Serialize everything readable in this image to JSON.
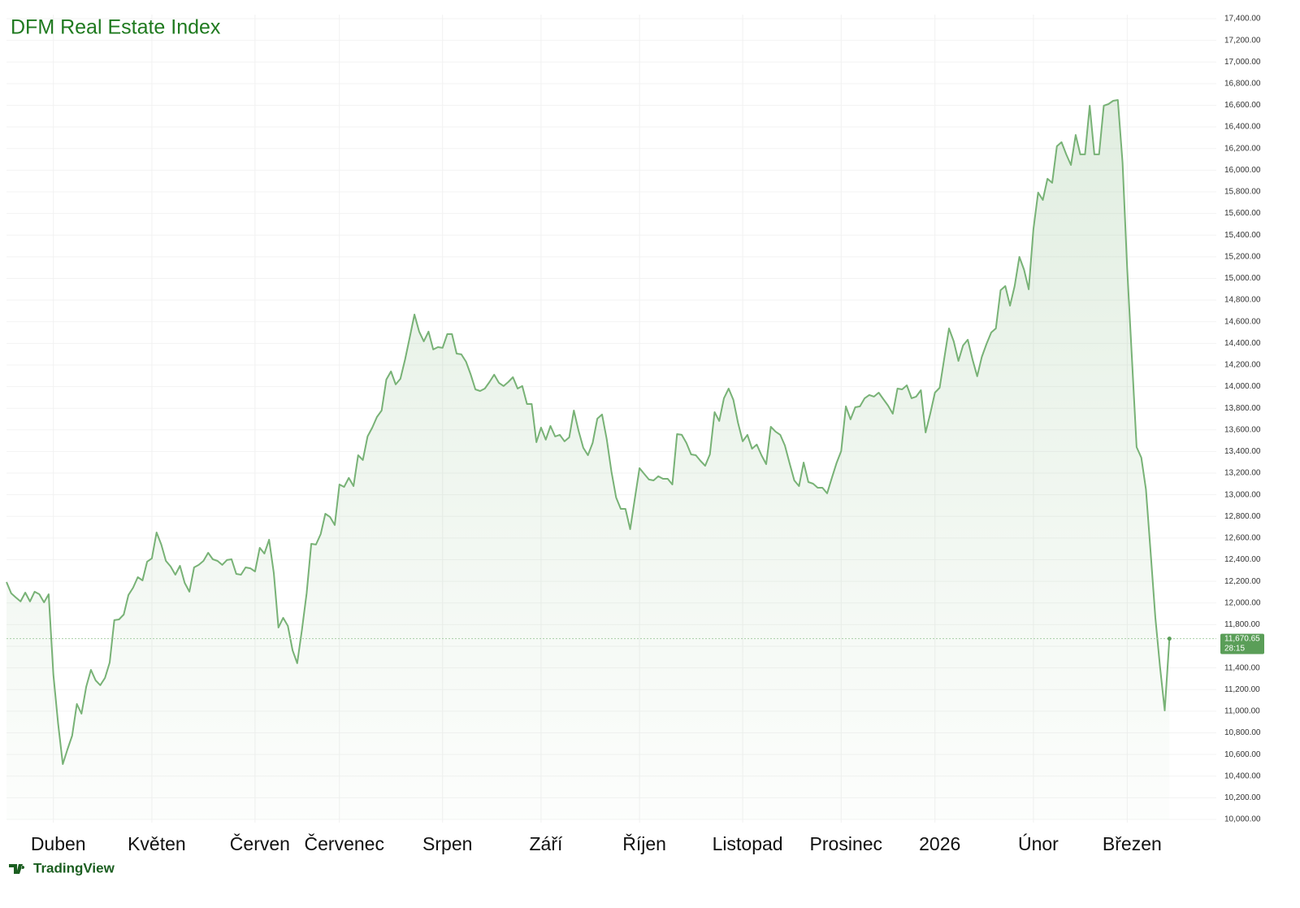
{
  "chart_data": {
    "type": "area",
    "title": "DFM Real Estate Index",
    "brand": "TradingView",
    "color": "#78b276",
    "values": [
      12194,
      12089,
      12051,
      12014,
      12096,
      12014,
      12104,
      12081,
      12006,
      12081,
      11337,
      10887,
      10511,
      10646,
      10774,
      11067,
      10977,
      11225,
      11382,
      11285,
      11240,
      11307,
      11450,
      11841,
      11848,
      11893,
      12074,
      12141,
      12239,
      12209,
      12382,
      12412,
      12652,
      12540,
      12389,
      12337,
      12261,
      12344,
      12186,
      12104,
      12329,
      12352,
      12389,
      12464,
      12404,
      12389,
      12352,
      12397,
      12404,
      12269,
      12261,
      12329,
      12321,
      12291,
      12510,
      12457,
      12585,
      12276,
      11773,
      11863,
      11788,
      11563,
      11443,
      11751,
      12089,
      12547,
      12540,
      12637,
      12825,
      12795,
      12720,
      13095,
      13073,
      13156,
      13080,
      13366,
      13321,
      13539,
      13621,
      13719,
      13779,
      14065,
      14140,
      14020,
      14072,
      14252,
      14455,
      14666,
      14508,
      14418,
      14508,
      14343,
      14365,
      14358,
      14485,
      14485,
      14305,
      14298,
      14230,
      14110,
      13974,
      13959,
      13982,
      14042,
      14110,
      14035,
      14005,
      14042,
      14087,
      13982,
      14005,
      13839,
      13839,
      13486,
      13621,
      13509,
      13636,
      13539,
      13554,
      13494,
      13531,
      13779,
      13591,
      13434,
      13366,
      13479,
      13704,
      13742,
      13516,
      13216,
      12975,
      12870,
      12870,
      12682,
      12968,
      13246,
      13193,
      13141,
      13133,
      13171,
      13148,
      13148,
      13095,
      13561,
      13554,
      13479,
      13373,
      13366,
      13313,
      13268,
      13373,
      13764,
      13682,
      13892,
      13982,
      13877,
      13666,
      13494,
      13554,
      13426,
      13464,
      13366,
      13283,
      13629,
      13584,
      13554,
      13456,
      13291,
      13133,
      13080,
      13298,
      13118,
      13103,
      13065,
      13065,
      13013,
      13156,
      13291,
      13404,
      13817,
      13697,
      13809,
      13817,
      13892,
      13922,
      13907,
      13944,
      13884,
      13824,
      13749,
      13982,
      13974,
      14012,
      13892,
      13907,
      13967,
      13576,
      13749,
      13944,
      13989,
      14267,
      14538,
      14418,
      14237,
      14380,
      14433,
      14252,
      14095,
      14275,
      14395,
      14500,
      14538,
      14891,
      14929,
      14748,
      14929,
      15199,
      15079,
      14899,
      15455,
      15793,
      15725,
      15921,
      15883,
      16221,
      16259,
      16146,
      16048,
      16326,
      16146,
      16146,
      16596,
      16146,
      16146,
      16596,
      16611,
      16641,
      16649,
      16071,
      15094,
      14267,
      13441,
      13343,
      13050,
      12464,
      11863,
      11412,
      11007,
      11670.65
    ],
    "xlim": [
      0,
      258
    ],
    "xticks": [
      {
        "value": 10,
        "label": "Duben"
      },
      {
        "value": 31,
        "label": "Květen"
      },
      {
        "value": 53,
        "label": "Červen"
      },
      {
        "value": 71,
        "label": "Červenec"
      },
      {
        "value": 93,
        "label": "Srpen"
      },
      {
        "value": 114,
        "label": "Září"
      },
      {
        "value": 135,
        "label": "Říjen"
      },
      {
        "value": 157,
        "label": "Listopad"
      },
      {
        "value": 178,
        "label": "Prosinec"
      },
      {
        "value": 198,
        "label": "2026"
      },
      {
        "value": 219,
        "label": "Únor"
      },
      {
        "value": 239,
        "label": "Březen"
      }
    ],
    "ylim": [
      10000,
      17400
    ],
    "yticks": [
      {
        "value": 10000,
        "label": "10,000.00"
      },
      {
        "value": 10200,
        "label": "10,200.00"
      },
      {
        "value": 10400,
        "label": "10,400.00"
      },
      {
        "value": 10600,
        "label": "10,600.00"
      },
      {
        "value": 10800,
        "label": "10,800.00"
      },
      {
        "value": 11000,
        "label": "11,000.00"
      },
      {
        "value": 11200,
        "label": "11,200.00"
      },
      {
        "value": 11400,
        "label": "11,400.00"
      },
      {
        "value": 11600,
        "label": "11,600.00"
      },
      {
        "value": 11800,
        "label": "11,800.00"
      },
      {
        "value": 12000,
        "label": "12,000.00"
      },
      {
        "value": 12200,
        "label": "12,200.00"
      },
      {
        "value": 12400,
        "label": "12,400.00"
      },
      {
        "value": 12600,
        "label": "12,600.00"
      },
      {
        "value": 12800,
        "label": "12,800.00"
      },
      {
        "value": 13000,
        "label": "13,000.00"
      },
      {
        "value": 13200,
        "label": "13,200.00"
      },
      {
        "value": 13400,
        "label": "13,400.00"
      },
      {
        "value": 13600,
        "label": "13,600.00"
      },
      {
        "value": 13800,
        "label": "13,800.00"
      },
      {
        "value": 14000,
        "label": "14,000.00"
      },
      {
        "value": 14200,
        "label": "14,200.00"
      },
      {
        "value": 14400,
        "label": "14,400.00"
      },
      {
        "value": 14600,
        "label": "14,600.00"
      },
      {
        "value": 14800,
        "label": "14,800.00"
      },
      {
        "value": 15000,
        "label": "15,000.00"
      },
      {
        "value": 15200,
        "label": "15,200.00"
      },
      {
        "value": 15400,
        "label": "15,400.00"
      },
      {
        "value": 15600,
        "label": "15,600.00"
      },
      {
        "value": 15800,
        "label": "15,800.00"
      },
      {
        "value": 16000,
        "label": "16,000.00"
      },
      {
        "value": 16200,
        "label": "16,200.00"
      },
      {
        "value": 16400,
        "label": "16,400.00"
      },
      {
        "value": 16600,
        "label": "16,600.00"
      },
      {
        "value": 16800,
        "label": "16,800.00"
      },
      {
        "value": 17000,
        "label": "17,000.00"
      },
      {
        "value": 17200,
        "label": "17,200.00"
      },
      {
        "value": 17400,
        "label": "17,400.00"
      }
    ],
    "grid": true,
    "last_price": {
      "value": 11670.65,
      "label": "11,670.65"
    },
    "countdown": "28:15"
  }
}
